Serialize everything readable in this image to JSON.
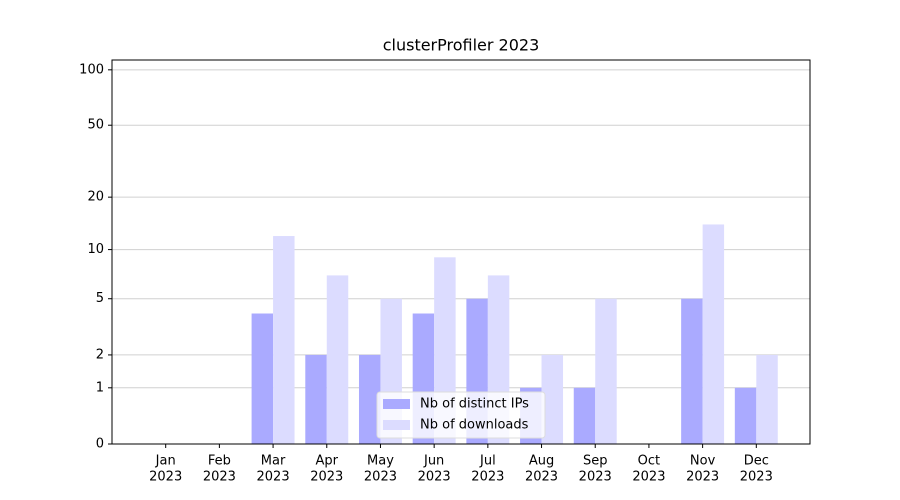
{
  "chart_data": {
    "type": "bar",
    "title": "clusterProfiler 2023",
    "categories": [
      [
        "Jan",
        "2023"
      ],
      [
        "Feb",
        "2023"
      ],
      [
        "Mar",
        "2023"
      ],
      [
        "Apr",
        "2023"
      ],
      [
        "May",
        "2023"
      ],
      [
        "Jun",
        "2023"
      ],
      [
        "Jul",
        "2023"
      ],
      [
        "Aug",
        "2023"
      ],
      [
        "Sep",
        "2023"
      ],
      [
        "Oct",
        "2023"
      ],
      [
        "Nov",
        "2023"
      ],
      [
        "Dec",
        "2023"
      ]
    ],
    "series": [
      {
        "name": "Nb of distinct IPs",
        "color": "#aaaaff",
        "values": [
          0,
          0,
          4,
          2,
          2,
          4,
          5,
          1,
          1,
          0,
          5,
          1
        ]
      },
      {
        "name": "Nb of downloads",
        "color": "#dcdcff",
        "values": [
          0,
          0,
          12,
          7,
          5,
          9,
          7,
          2,
          5,
          0,
          14,
          2
        ]
      }
    ],
    "yscale": "log1p",
    "ylim": [
      0,
      113
    ],
    "yticks": [
      0,
      1,
      2,
      5,
      10,
      20,
      50,
      100
    ],
    "grid": true,
    "legend": "lower center"
  }
}
